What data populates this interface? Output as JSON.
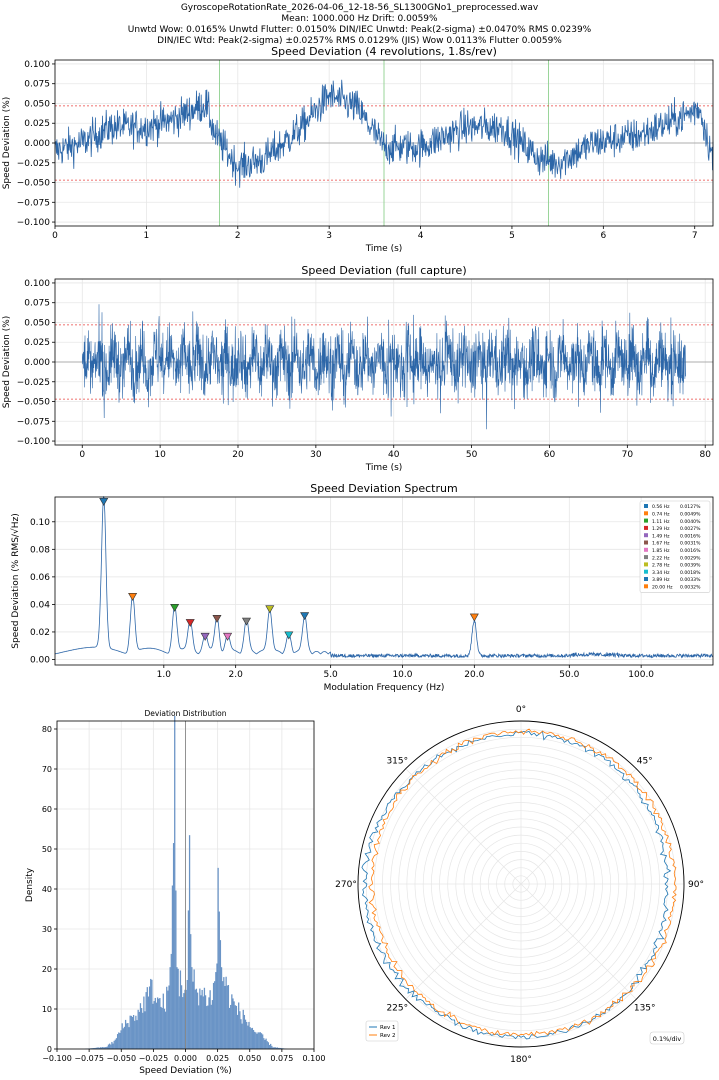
{
  "header": {
    "filename": "GyroscopeRotationRate_2026-04-06_12-18-56_SL1300GNo1_preprocessed.wav",
    "line2": "Mean: 1000.000 Hz     Drift: 0.0059%",
    "line3": "Unwtd Wow: 0.0165%    Unwtd Flutter: 0.0150%    DIN/IEC Unwtd:  Peak(2-sigma) ±0.0470%    RMS 0.0239%",
    "line4": "DIN/IEC Wtd:  Peak(2-sigma) ±0.0257%    RMS 0.0129% (JIS)    Wow 0.0113%    Flutter 0.0059%"
  },
  "colors": {
    "series": "#2c66a8",
    "threshold": "#e8423f",
    "revline": "#8fd18f",
    "rev1": "#1f77b4",
    "rev2": "#ff7f0e",
    "grid": "#e6e6e6",
    "hist": "#6a94c6"
  },
  "chart_data": [
    {
      "type": "line",
      "title": "Speed Deviation (4 revolutions, 1.8s/rev)",
      "xlabel": "Time (s)",
      "ylabel": "Speed Deviation (%)",
      "xlim": [
        0,
        7.2
      ],
      "ylim": [
        -0.105,
        0.105
      ],
      "xticks": [
        0,
        1,
        2,
        3,
        4,
        5,
        6,
        7
      ],
      "yticks": [
        -0.1,
        -0.075,
        -0.05,
        -0.025,
        0.0,
        0.025,
        0.05,
        0.075,
        0.1
      ],
      "ytick_labels": [
        "−0.100",
        "−0.075",
        "−0.050",
        "−0.025",
        "0.000",
        "0.025",
        "0.050",
        "0.075",
        "0.100"
      ],
      "thresholds": [
        0.047,
        -0.047
      ],
      "rev_markers": [
        1.8,
        3.6,
        5.4
      ],
      "envelope_keypoints": [
        [
          0,
          -0.01
        ],
        [
          0.3,
          0.0
        ],
        [
          0.6,
          0.02
        ],
        [
          1.0,
          0.02
        ],
        [
          1.3,
          0.03
        ],
        [
          1.65,
          0.05
        ],
        [
          1.75,
          0.01
        ],
        [
          2.0,
          -0.03
        ],
        [
          2.3,
          -0.02
        ],
        [
          2.7,
          0.02
        ],
        [
          3.0,
          0.06
        ],
        [
          3.3,
          0.045
        ],
        [
          3.6,
          -0.005
        ],
        [
          4.0,
          -0.005
        ],
        [
          4.5,
          0.02
        ],
        [
          4.9,
          0.02
        ],
        [
          5.3,
          -0.02
        ],
        [
          5.5,
          -0.025
        ],
        [
          5.9,
          0.0
        ],
        [
          6.4,
          0.01
        ],
        [
          6.9,
          0.035
        ],
        [
          7.05,
          0.045
        ],
        [
          7.2,
          -0.02
        ]
      ],
      "noise_amplitude": 0.025
    },
    {
      "type": "line",
      "title": "Speed Deviation (full capture)",
      "xlabel": "Time (s)",
      "ylabel": "Speed Deviation (%)",
      "xlim": [
        -3.5,
        81
      ],
      "ylim": [
        -0.105,
        0.105
      ],
      "xticks": [
        0,
        10,
        20,
        30,
        40,
        50,
        60,
        70,
        80
      ],
      "yticks": [
        -0.1,
        -0.075,
        -0.05,
        -0.025,
        0.0,
        0.025,
        0.05,
        0.075,
        0.1
      ],
      "ytick_labels": [
        "−0.100",
        "−0.075",
        "−0.050",
        "−0.025",
        "0.000",
        "0.025",
        "0.050",
        "0.075",
        "0.100"
      ],
      "thresholds": [
        0.047,
        -0.047
      ],
      "data_range": [
        0,
        77.5
      ],
      "rev_period_s": 1.8,
      "noise_amplitude": 0.035
    },
    {
      "type": "line",
      "scale": "log",
      "title": "Speed Deviation Spectrum",
      "xlabel": "Modulation Frequency (Hz)",
      "ylabel": "Speed Deviation (% RMS/√Hz)",
      "xlim": [
        0.35,
        200
      ],
      "ylim": [
        -0.004,
        0.118
      ],
      "xticks": [
        1.0,
        2.0,
        5.0,
        10.0,
        20.0,
        50.0,
        100.0
      ],
      "xtick_labels": [
        "1.0",
        "2.0",
        "5.0",
        "10.0",
        "20.0",
        "50.0",
        "100.0"
      ],
      "yticks": [
        0.0,
        0.02,
        0.04,
        0.06,
        0.08,
        0.1
      ],
      "ytick_labels": [
        "0.00",
        "0.02",
        "0.04",
        "0.06",
        "0.08",
        "0.10"
      ],
      "peaks": [
        {
          "freq": 0.56,
          "label": "0.56 Hz",
          "value": "0.0127%",
          "height": 0.112,
          "color": "#1f77b4"
        },
        {
          "freq": 0.74,
          "label": "0.74 Hz",
          "value": "0.0049%",
          "height": 0.043,
          "color": "#ff7f0e"
        },
        {
          "freq": 1.11,
          "label": "1.11 Hz",
          "value": "0.0040%",
          "height": 0.035,
          "color": "#2ca02c"
        },
        {
          "freq": 1.29,
          "label": "1.29 Hz",
          "value": "0.0027%",
          "height": 0.024,
          "color": "#d62728"
        },
        {
          "freq": 1.49,
          "label": "1.49 Hz",
          "value": "0.0016%",
          "height": 0.014,
          "color": "#9467bd"
        },
        {
          "freq": 1.67,
          "label": "1.67 Hz",
          "value": "0.0031%",
          "height": 0.027,
          "color": "#8c564b"
        },
        {
          "freq": 1.85,
          "label": "1.85 Hz",
          "value": "0.0016%",
          "height": 0.014,
          "color": "#e377c2"
        },
        {
          "freq": 2.22,
          "label": "2.22 Hz",
          "value": "0.0029%",
          "height": 0.025,
          "color": "#7f7f7f"
        },
        {
          "freq": 2.78,
          "label": "2.78 Hz",
          "value": "0.0039%",
          "height": 0.034,
          "color": "#bcbd22"
        },
        {
          "freq": 3.34,
          "label": "3.34 Hz",
          "value": "0.0018%",
          "height": 0.015,
          "color": "#17becf"
        },
        {
          "freq": 3.89,
          "label": "3.89 Hz",
          "value": "0.0033%",
          "height": 0.029,
          "color": "#1f77b4"
        },
        {
          "freq": 20.0,
          "label": "20.00 Hz",
          "value": "0.0032%",
          "height": 0.028,
          "color": "#ff7f0e"
        }
      ]
    },
    {
      "type": "bar",
      "subtype": "histogram",
      "title": "Deviation Distribution",
      "xlabel": "Speed Deviation (%)",
      "ylabel": "Density",
      "xlim": [
        -0.1,
        0.1
      ],
      "ylim": [
        0,
        82
      ],
      "xticks": [
        -0.1,
        -0.075,
        -0.05,
        -0.025,
        0.0,
        0.025,
        0.05,
        0.075,
        0.1
      ],
      "xtick_labels": [
        "−0.100",
        "−0.075",
        "−0.050",
        "−0.025",
        "0.000",
        "0.025",
        "0.050",
        "0.075",
        "0.100"
      ],
      "yticks": [
        0,
        10,
        20,
        30,
        40,
        50,
        60,
        70,
        80
      ],
      "density_keypoints": [
        [
          -0.08,
          0
        ],
        [
          -0.062,
          0.5
        ],
        [
          -0.055,
          2
        ],
        [
          -0.05,
          5
        ],
        [
          -0.045,
          7
        ],
        [
          -0.04,
          8
        ],
        [
          -0.035,
          10
        ],
        [
          -0.03,
          13
        ],
        [
          -0.026,
          15
        ],
        [
          -0.022,
          12
        ],
        [
          -0.018,
          11
        ],
        [
          -0.014,
          13
        ],
        [
          -0.012,
          18
        ],
        [
          -0.0105,
          30
        ],
        [
          -0.0095,
          50
        ],
        [
          -0.0085,
          78
        ],
        [
          -0.0075,
          40
        ],
        [
          -0.0065,
          22
        ],
        [
          -0.005,
          16
        ],
        [
          -0.003,
          17
        ],
        [
          -0.001,
          15
        ],
        [
          0.001,
          14
        ],
        [
          0.002,
          20
        ],
        [
          0.0025,
          40
        ],
        [
          0.003,
          52
        ],
        [
          0.0035,
          35
        ],
        [
          0.005,
          18
        ],
        [
          0.008,
          15
        ],
        [
          0.012,
          14
        ],
        [
          0.016,
          13
        ],
        [
          0.02,
          13
        ],
        [
          0.023,
          16
        ],
        [
          0.0245,
          25
        ],
        [
          0.0255,
          42
        ],
        [
          0.0265,
          33
        ],
        [
          0.028,
          20
        ],
        [
          0.032,
          15
        ],
        [
          0.036,
          12
        ],
        [
          0.04,
          10
        ],
        [
          0.045,
          8
        ],
        [
          0.05,
          6
        ],
        [
          0.055,
          4
        ],
        [
          0.06,
          3
        ],
        [
          0.063,
          2
        ],
        [
          0.068,
          0.5
        ],
        [
          0.08,
          0
        ]
      ],
      "vline": 0.0
    },
    {
      "type": "line",
      "subtype": "polar",
      "angle_labels": [
        "0°",
        "45°",
        "90°",
        "135°",
        "180°",
        "225°",
        "270°",
        "315°"
      ],
      "legend": [
        "Rev 1",
        "Rev 2"
      ],
      "scale_label": "0.1%/div",
      "rings": 20
    }
  ]
}
